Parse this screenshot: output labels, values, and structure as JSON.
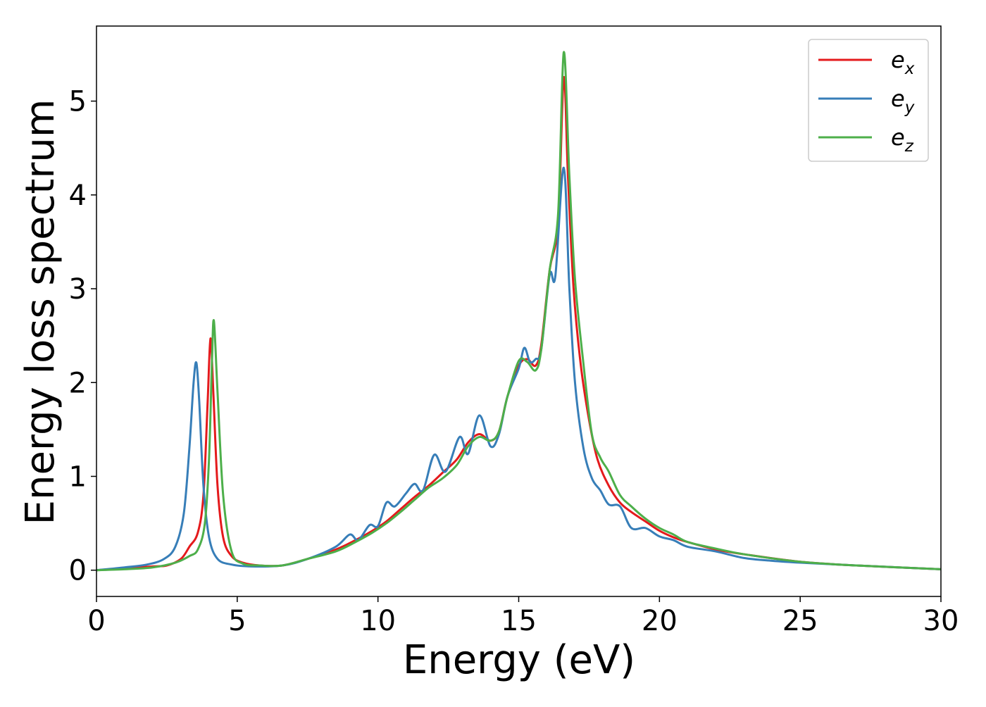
{
  "chart_data": {
    "type": "line",
    "xlabel": "Energy (eV)",
    "ylabel": "Energy loss spectrum",
    "xlim": [
      0,
      30
    ],
    "ylim": [
      -0.28,
      5.8
    ],
    "xticks": [
      0,
      5,
      10,
      15,
      20,
      25,
      30
    ],
    "yticks": [
      0,
      1,
      2,
      3,
      4,
      5
    ],
    "grid": false,
    "legend_position": "top-right",
    "series": [
      {
        "name": "e_x",
        "base": "e",
        "sub": "x",
        "color": "#e41a1c",
        "points": [
          [
            0,
            0
          ],
          [
            1,
            0.02
          ],
          [
            2,
            0.04
          ],
          [
            2.5,
            0.05
          ],
          [
            3,
            0.12
          ],
          [
            3.3,
            0.25
          ],
          [
            3.6,
            0.4
          ],
          [
            3.8,
            0.8
          ],
          [
            3.95,
            1.8
          ],
          [
            4.05,
            2.47
          ],
          [
            4.15,
            1.9
          ],
          [
            4.3,
            0.9
          ],
          [
            4.5,
            0.35
          ],
          [
            4.8,
            0.15
          ],
          [
            5.2,
            0.08
          ],
          [
            5.8,
            0.05
          ],
          [
            6.6,
            0.05
          ],
          [
            7.5,
            0.12
          ],
          [
            8.5,
            0.22
          ],
          [
            9.2,
            0.32
          ],
          [
            9.8,
            0.42
          ],
          [
            10.3,
            0.52
          ],
          [
            10.8,
            0.65
          ],
          [
            11.3,
            0.78
          ],
          [
            11.8,
            0.9
          ],
          [
            12.3,
            1.04
          ],
          [
            12.8,
            1.18
          ],
          [
            13.2,
            1.36
          ],
          [
            13.6,
            1.45
          ],
          [
            14,
            1.38
          ],
          [
            14.3,
            1.48
          ],
          [
            14.6,
            1.85
          ],
          [
            15,
            2.18
          ],
          [
            15.3,
            2.25
          ],
          [
            15.6,
            2.18
          ],
          [
            15.8,
            2.4
          ],
          [
            16.1,
            3.2
          ],
          [
            16.4,
            3.7
          ],
          [
            16.6,
            5.25
          ],
          [
            16.75,
            4.2
          ],
          [
            16.95,
            3.0
          ],
          [
            17.2,
            2.2
          ],
          [
            17.5,
            1.6
          ],
          [
            17.8,
            1.18
          ],
          [
            18.2,
            0.9
          ],
          [
            18.6,
            0.72
          ],
          [
            19,
            0.62
          ],
          [
            19.5,
            0.52
          ],
          [
            20,
            0.42
          ],
          [
            20.5,
            0.35
          ],
          [
            21,
            0.3
          ],
          [
            22,
            0.22
          ],
          [
            23,
            0.17
          ],
          [
            25,
            0.09
          ],
          [
            27,
            0.05
          ],
          [
            30,
            0.01
          ]
        ]
      },
      {
        "name": "e_y",
        "base": "e",
        "sub": "y",
        "color": "#377eb8",
        "points": [
          [
            0,
            0
          ],
          [
            1,
            0.03
          ],
          [
            1.8,
            0.06
          ],
          [
            2.4,
            0.12
          ],
          [
            2.8,
            0.25
          ],
          [
            3.1,
            0.6
          ],
          [
            3.3,
            1.3
          ],
          [
            3.45,
            2.0
          ],
          [
            3.55,
            2.21
          ],
          [
            3.65,
            1.8
          ],
          [
            3.8,
            0.9
          ],
          [
            4,
            0.35
          ],
          [
            4.3,
            0.12
          ],
          [
            4.8,
            0.06
          ],
          [
            5.5,
            0.04
          ],
          [
            6.6,
            0.05
          ],
          [
            7.5,
            0.12
          ],
          [
            8.5,
            0.25
          ],
          [
            9,
            0.38
          ],
          [
            9.3,
            0.32
          ],
          [
            9.7,
            0.48
          ],
          [
            10,
            0.47
          ],
          [
            10.3,
            0.72
          ],
          [
            10.6,
            0.68
          ],
          [
            11,
            0.82
          ],
          [
            11.3,
            0.92
          ],
          [
            11.6,
            0.85
          ],
          [
            12,
            1.23
          ],
          [
            12.4,
            1.05
          ],
          [
            12.9,
            1.42
          ],
          [
            13.2,
            1.24
          ],
          [
            13.6,
            1.65
          ],
          [
            14,
            1.32
          ],
          [
            14.3,
            1.45
          ],
          [
            14.6,
            1.85
          ],
          [
            15,
            2.15
          ],
          [
            15.2,
            2.37
          ],
          [
            15.4,
            2.22
          ],
          [
            15.6,
            2.25
          ],
          [
            15.8,
            2.35
          ],
          [
            16.1,
            3.15
          ],
          [
            16.3,
            3.13
          ],
          [
            16.6,
            4.29
          ],
          [
            16.8,
            3.0
          ],
          [
            17,
            2.0
          ],
          [
            17.3,
            1.3
          ],
          [
            17.6,
            0.98
          ],
          [
            17.9,
            0.85
          ],
          [
            18.2,
            0.7
          ],
          [
            18.6,
            0.68
          ],
          [
            19,
            0.45
          ],
          [
            19.5,
            0.45
          ],
          [
            20,
            0.36
          ],
          [
            20.5,
            0.32
          ],
          [
            21,
            0.25
          ],
          [
            22,
            0.2
          ],
          [
            23,
            0.13
          ],
          [
            24,
            0.1
          ],
          [
            25,
            0.08
          ],
          [
            27,
            0.05
          ],
          [
            30,
            0.01
          ]
        ]
      },
      {
        "name": "e_z",
        "base": "e",
        "sub": "z",
        "color": "#4daf4a",
        "points": [
          [
            0,
            0
          ],
          [
            1,
            0.01
          ],
          [
            2,
            0.03
          ],
          [
            2.8,
            0.08
          ],
          [
            3.3,
            0.15
          ],
          [
            3.6,
            0.22
          ],
          [
            3.85,
            0.5
          ],
          [
            4.0,
            1.2
          ],
          [
            4.1,
            2.2
          ],
          [
            4.17,
            2.66
          ],
          [
            4.3,
            1.9
          ],
          [
            4.5,
            0.8
          ],
          [
            4.8,
            0.2
          ],
          [
            5.2,
            0.07
          ],
          [
            5.8,
            0.05
          ],
          [
            6.6,
            0.05
          ],
          [
            7.5,
            0.12
          ],
          [
            8.5,
            0.2
          ],
          [
            9.2,
            0.3
          ],
          [
            9.8,
            0.4
          ],
          [
            10.3,
            0.5
          ],
          [
            10.8,
            0.62
          ],
          [
            11.3,
            0.75
          ],
          [
            11.8,
            0.88
          ],
          [
            12.3,
            0.98
          ],
          [
            12.8,
            1.12
          ],
          [
            13.2,
            1.32
          ],
          [
            13.6,
            1.42
          ],
          [
            14,
            1.38
          ],
          [
            14.3,
            1.48
          ],
          [
            14.6,
            1.85
          ],
          [
            15,
            2.23
          ],
          [
            15.3,
            2.22
          ],
          [
            15.6,
            2.13
          ],
          [
            15.8,
            2.35
          ],
          [
            16.1,
            3.2
          ],
          [
            16.4,
            3.8
          ],
          [
            16.6,
            5.52
          ],
          [
            16.8,
            4.2
          ],
          [
            17,
            3.1
          ],
          [
            17.3,
            2.2
          ],
          [
            17.6,
            1.45
          ],
          [
            17.9,
            1.2
          ],
          [
            18.2,
            1.05
          ],
          [
            18.6,
            0.8
          ],
          [
            19,
            0.68
          ],
          [
            19.5,
            0.55
          ],
          [
            20,
            0.45
          ],
          [
            20.5,
            0.38
          ],
          [
            21,
            0.3
          ],
          [
            22,
            0.23
          ],
          [
            23,
            0.17
          ],
          [
            25,
            0.09
          ],
          [
            27,
            0.05
          ],
          [
            30,
            0.01
          ]
        ]
      }
    ]
  }
}
